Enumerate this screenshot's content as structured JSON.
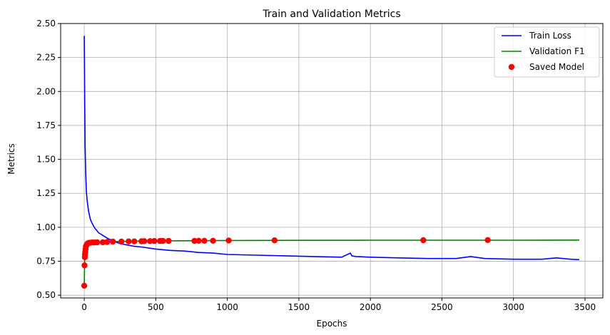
{
  "chart_data": {
    "type": "line",
    "title": "Train and Validation Metrics",
    "xlabel": "Epochs",
    "ylabel": "Metrics",
    "xlim": [
      -165,
      3625
    ],
    "ylim": [
      0.48,
      2.5
    ],
    "xticks": [
      0,
      500,
      1000,
      1500,
      2000,
      2500,
      3000,
      3500
    ],
    "xtick_labels": [
      "0",
      "500",
      "1000",
      "1500",
      "2000",
      "2500",
      "3000",
      "3500"
    ],
    "yticks": [
      0.5,
      0.75,
      1.0,
      1.25,
      1.5,
      1.75,
      2.0,
      2.25,
      2.5
    ],
    "ytick_labels": [
      "0.50",
      "0.75",
      "1.00",
      "1.25",
      "1.50",
      "1.75",
      "2.00",
      "2.25",
      "2.50"
    ],
    "grid": true,
    "legend_position": "top-right",
    "series": [
      {
        "name": "Train Loss",
        "color": "#0000ff",
        "style": "line",
        "x": [
          0,
          3,
          6,
          10,
          15,
          20,
          30,
          40,
          50,
          70,
          100,
          130,
          160,
          200,
          250,
          300,
          350,
          400,
          500,
          600,
          700,
          800,
          900,
          1000,
          1200,
          1400,
          1600,
          1800,
          1860,
          1870,
          1900,
          2000,
          2200,
          2400,
          2600,
          2700,
          2800,
          3000,
          3200,
          3300,
          3400,
          3460
        ],
        "y": [
          2.41,
          1.95,
          1.6,
          1.4,
          1.26,
          1.2,
          1.12,
          1.07,
          1.04,
          1.0,
          0.96,
          0.94,
          0.92,
          0.9,
          0.88,
          0.87,
          0.86,
          0.855,
          0.84,
          0.83,
          0.825,
          0.815,
          0.81,
          0.8,
          0.795,
          0.79,
          0.785,
          0.78,
          0.81,
          0.79,
          0.785,
          0.78,
          0.775,
          0.77,
          0.77,
          0.785,
          0.77,
          0.765,
          0.765,
          0.775,
          0.765,
          0.762
        ]
      },
      {
        "name": "Validation F1",
        "color": "#008000",
        "style": "line",
        "x": [
          0,
          2,
          4,
          6,
          8,
          10,
          15,
          20,
          30,
          40,
          50,
          70,
          100,
          130,
          160,
          200,
          300,
          400,
          500,
          1000,
          1500,
          2000,
          2500,
          3000,
          3460
        ],
        "y": [
          0.57,
          0.72,
          0.78,
          0.8,
          0.82,
          0.84,
          0.86,
          0.87,
          0.88,
          0.885,
          0.886,
          0.888,
          0.89,
          0.89,
          0.892,
          0.895,
          0.897,
          0.898,
          0.9,
          0.903,
          0.904,
          0.905,
          0.905,
          0.905,
          0.906
        ]
      },
      {
        "name": "Saved Model",
        "color": "#ff0000",
        "style": "markers",
        "x": [
          0,
          2,
          4,
          5,
          7,
          9,
          12,
          16,
          22,
          30,
          40,
          55,
          70,
          90,
          130,
          160,
          200,
          260,
          310,
          350,
          400,
          420,
          460,
          490,
          530,
          550,
          590,
          770,
          800,
          840,
          900,
          1010,
          1330,
          2370,
          2820
        ],
        "y": [
          0.57,
          0.72,
          0.78,
          0.8,
          0.82,
          0.84,
          0.86,
          0.87,
          0.88,
          0.885,
          0.886,
          0.888,
          0.888,
          0.889,
          0.89,
          0.892,
          0.895,
          0.895,
          0.896,
          0.896,
          0.897,
          0.898,
          0.898,
          0.899,
          0.899,
          0.9,
          0.9,
          0.9,
          0.901,
          0.901,
          0.901,
          0.903,
          0.904,
          0.905,
          0.906
        ]
      }
    ]
  }
}
